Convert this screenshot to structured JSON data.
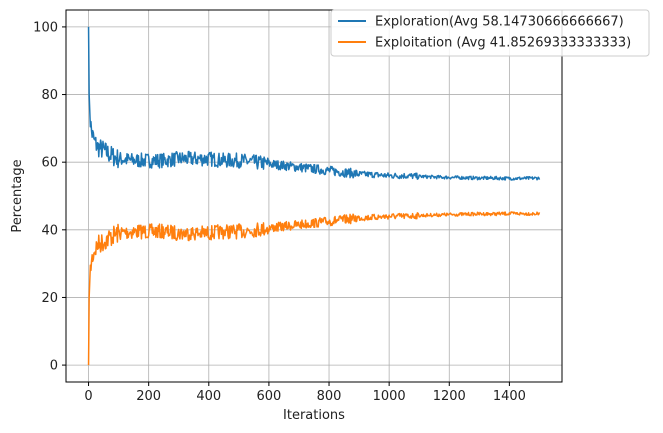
{
  "chart_data": {
    "type": "line",
    "title": "",
    "xlabel": "Iterations",
    "ylabel": "Percentage",
    "xlim": [
      -75,
      1575
    ],
    "ylim": [
      -5,
      105
    ],
    "xticks": [
      0,
      200,
      400,
      600,
      800,
      1000,
      1200,
      1400
    ],
    "yticks": [
      0,
      20,
      40,
      60,
      80,
      100
    ],
    "grid": true,
    "legend_position": "top-right",
    "series": [
      {
        "name": "Exploration(Avg 58.14730666666667)",
        "color": "#1f77b4",
        "x": [
          0,
          2,
          5,
          10,
          20,
          30,
          50,
          75,
          100,
          150,
          200,
          250,
          300,
          350,
          400,
          450,
          500,
          550,
          600,
          650,
          700,
          750,
          800,
          850,
          900,
          950,
          1000,
          1050,
          1100,
          1150,
          1200,
          1250,
          1300,
          1350,
          1400,
          1450,
          1500
        ],
        "y": [
          100,
          80,
          73,
          69,
          66,
          64.5,
          63.5,
          62,
          61,
          60.5,
          60.5,
          60.5,
          61,
          61,
          61,
          60.5,
          60.5,
          60,
          59.5,
          59,
          58.5,
          58,
          57.5,
          57,
          56.5,
          56.3,
          56,
          56,
          55.8,
          55.6,
          55.5,
          55.4,
          55.3,
          55.3,
          55.2,
          55.2,
          55.3
        ]
      },
      {
        "name": "Exploitation (Avg 41.85269333333333)",
        "color": "#ff7f0e",
        "x": [
          0,
          2,
          5,
          10,
          20,
          30,
          50,
          75,
          100,
          150,
          200,
          250,
          300,
          350,
          400,
          450,
          500,
          550,
          600,
          650,
          700,
          750,
          800,
          850,
          900,
          950,
          1000,
          1050,
          1100,
          1150,
          1200,
          1250,
          1300,
          1350,
          1400,
          1450,
          1500
        ],
        "y": [
          0,
          20,
          27,
          31,
          34,
          35.5,
          36.5,
          38,
          39,
          39.5,
          39.5,
          39.5,
          39,
          39,
          39,
          39.5,
          39.5,
          40,
          40.5,
          41,
          41.5,
          42,
          42.5,
          43,
          43.5,
          43.7,
          44,
          44,
          44.2,
          44.4,
          44.5,
          44.6,
          44.7,
          44.7,
          44.8,
          44.8,
          44.7
        ]
      }
    ]
  }
}
